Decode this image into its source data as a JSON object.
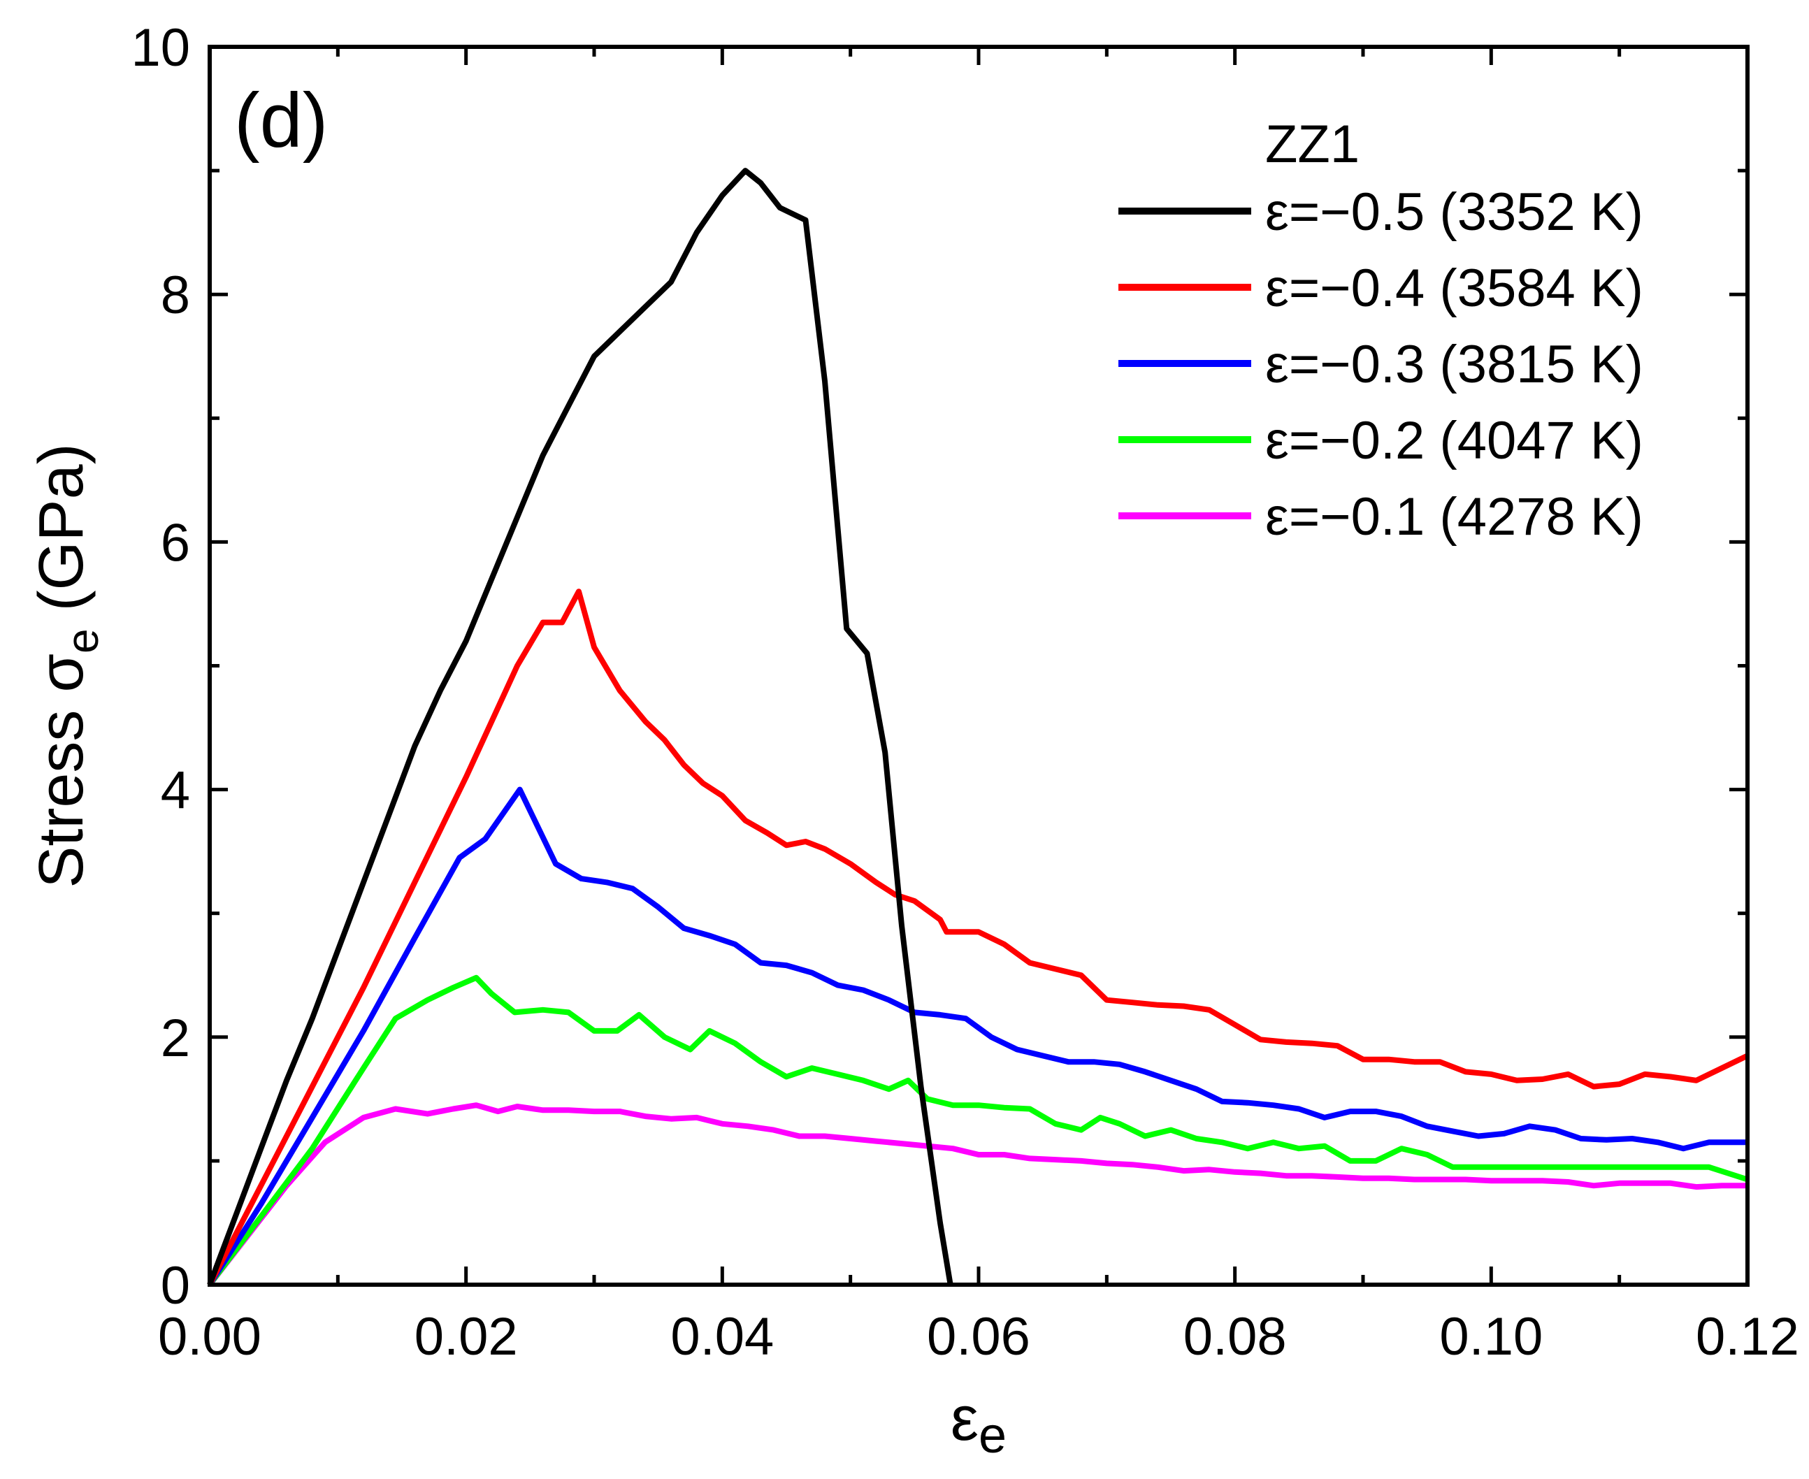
{
  "chart_data": {
    "type": "line",
    "panel_label": "(d)",
    "legend_title": "ZZ1",
    "xlabel_symbol": "ε",
    "xlabel_subscript": "e",
    "ylabel_prefix": "Stress σ",
    "ylabel_subscript": "e",
    "ylabel_suffix": " (GPa)",
    "xlim": [
      0,
      0.12
    ],
    "ylim": [
      0,
      10
    ],
    "xticks": [
      0.0,
      0.02,
      0.04,
      0.06,
      0.08,
      0.1,
      0.12
    ],
    "xtick_labels": [
      "0.00",
      "0.02",
      "0.04",
      "0.06",
      "0.08",
      "0.10",
      "0.12"
    ],
    "yticks": [
      0,
      2,
      4,
      6,
      8,
      10
    ],
    "ytick_labels": [
      "0",
      "2",
      "4",
      "6",
      "8",
      "10"
    ],
    "legend_position": "top-right",
    "grid": false,
    "series": [
      {
        "name": "ε=−0.5 (3352 K)",
        "color": "#000000",
        "x": [
          0,
          0.002,
          0.004,
          0.006,
          0.008,
          0.01,
          0.012,
          0.014,
          0.016,
          0.018,
          0.02,
          0.022,
          0.024,
          0.026,
          0.028,
          0.03,
          0.032,
          0.034,
          0.036,
          0.038,
          0.04,
          0.0418,
          0.043,
          0.0445,
          0.0465,
          0.048,
          0.0497,
          0.0513,
          0.0527,
          0.054,
          0.0555,
          0.057,
          0.0578
        ],
        "values": [
          0,
          0.55,
          1.1,
          1.65,
          2.15,
          2.7,
          3.25,
          3.8,
          4.35,
          4.8,
          5.2,
          5.7,
          6.2,
          6.7,
          7.1,
          7.5,
          7.7,
          7.9,
          8.1,
          8.5,
          8.8,
          9.0,
          8.9,
          8.7,
          8.6,
          7.3,
          5.3,
          5.1,
          4.3,
          2.9,
          1.6,
          0.5,
          0
        ]
      },
      {
        "name": "ε=−0.4 (3584 K)",
        "color": "#ff0000",
        "x": [
          0,
          0.004,
          0.008,
          0.012,
          0.016,
          0.02,
          0.024,
          0.026,
          0.0275,
          0.0288,
          0.03,
          0.032,
          0.034,
          0.0355,
          0.037,
          0.0385,
          0.04,
          0.0418,
          0.0435,
          0.045,
          0.0465,
          0.048,
          0.05,
          0.052,
          0.0535,
          0.055,
          0.057,
          0.0575,
          0.06,
          0.062,
          0.064,
          0.066,
          0.068,
          0.07,
          0.072,
          0.074,
          0.076,
          0.078,
          0.08,
          0.082,
          0.084,
          0.086,
          0.088,
          0.09,
          0.092,
          0.094,
          0.096,
          0.098,
          0.1,
          0.102,
          0.104,
          0.106,
          0.108,
          0.11,
          0.112,
          0.114,
          0.116,
          0.118,
          0.12
        ],
        "values": [
          0,
          0.8,
          1.6,
          2.4,
          3.25,
          4.1,
          5.0,
          5.35,
          5.35,
          5.6,
          5.15,
          4.8,
          4.55,
          4.4,
          4.2,
          4.05,
          3.95,
          3.75,
          3.65,
          3.55,
          3.58,
          3.52,
          3.4,
          3.25,
          3.15,
          3.1,
          2.95,
          2.85,
          2.85,
          2.75,
          2.6,
          2.55,
          2.5,
          2.3,
          2.28,
          2.26,
          2.25,
          2.22,
          2.1,
          1.98,
          1.96,
          1.95,
          1.93,
          1.82,
          1.82,
          1.8,
          1.8,
          1.72,
          1.7,
          1.65,
          1.66,
          1.7,
          1.6,
          1.62,
          1.7,
          1.68,
          1.65,
          1.75,
          1.85
        ]
      },
      {
        "name": "ε=−0.3 (3815 K)",
        "color": "#0000ff",
        "x": [
          0,
          0.004,
          0.008,
          0.012,
          0.016,
          0.0195,
          0.0215,
          0.0242,
          0.027,
          0.029,
          0.031,
          0.033,
          0.035,
          0.037,
          0.039,
          0.041,
          0.043,
          0.045,
          0.047,
          0.049,
          0.051,
          0.053,
          0.055,
          0.057,
          0.059,
          0.061,
          0.063,
          0.065,
          0.067,
          0.069,
          0.071,
          0.073,
          0.075,
          0.077,
          0.079,
          0.081,
          0.083,
          0.085,
          0.087,
          0.089,
          0.091,
          0.093,
          0.095,
          0.097,
          0.099,
          0.101,
          0.103,
          0.105,
          0.107,
          0.109,
          0.111,
          0.113,
          0.115,
          0.117,
          0.12
        ],
        "values": [
          0,
          0.65,
          1.35,
          2.05,
          2.8,
          3.45,
          3.6,
          4.0,
          3.4,
          3.28,
          3.25,
          3.2,
          3.05,
          2.88,
          2.82,
          2.75,
          2.6,
          2.58,
          2.52,
          2.42,
          2.38,
          2.3,
          2.2,
          2.18,
          2.15,
          2.0,
          1.9,
          1.85,
          1.8,
          1.8,
          1.78,
          1.72,
          1.65,
          1.58,
          1.48,
          1.47,
          1.45,
          1.42,
          1.35,
          1.4,
          1.4,
          1.36,
          1.28,
          1.24,
          1.2,
          1.22,
          1.28,
          1.25,
          1.18,
          1.17,
          1.18,
          1.15,
          1.1,
          1.15,
          1.15
        ]
      },
      {
        "name": "ε=−0.2 (4047 K)",
        "color": "#00ff00",
        "x": [
          0,
          0.004,
          0.008,
          0.012,
          0.0145,
          0.017,
          0.019,
          0.0208,
          0.022,
          0.0238,
          0.026,
          0.028,
          0.03,
          0.0318,
          0.0335,
          0.0355,
          0.0375,
          0.039,
          0.041,
          0.043,
          0.045,
          0.047,
          0.049,
          0.051,
          0.053,
          0.0545,
          0.056,
          0.058,
          0.06,
          0.062,
          0.064,
          0.066,
          0.068,
          0.0695,
          0.071,
          0.073,
          0.075,
          0.077,
          0.079,
          0.081,
          0.083,
          0.085,
          0.087,
          0.089,
          0.091,
          0.093,
          0.095,
          0.097,
          0.099,
          0.101,
          0.103,
          0.105,
          0.107,
          0.109,
          0.111,
          0.113,
          0.115,
          0.117,
          0.12
        ],
        "values": [
          0,
          0.55,
          1.1,
          1.75,
          2.15,
          2.3,
          2.4,
          2.48,
          2.35,
          2.2,
          2.22,
          2.2,
          2.05,
          2.05,
          2.18,
          2.0,
          1.9,
          2.05,
          1.95,
          1.8,
          1.68,
          1.75,
          1.7,
          1.65,
          1.58,
          1.65,
          1.5,
          1.45,
          1.45,
          1.43,
          1.42,
          1.3,
          1.25,
          1.35,
          1.3,
          1.2,
          1.25,
          1.18,
          1.15,
          1.1,
          1.15,
          1.1,
          1.12,
          1.0,
          1.0,
          1.1,
          1.05,
          0.95,
          0.95,
          0.95,
          0.95,
          0.95,
          0.95,
          0.95,
          0.95,
          0.95,
          0.95,
          0.95,
          0.85
        ]
      },
      {
        "name": "ε=−0.1 (4278 K)",
        "color": "#ff00ff",
        "x": [
          0,
          0.003,
          0.006,
          0.009,
          0.012,
          0.0145,
          0.017,
          0.019,
          0.0208,
          0.0225,
          0.024,
          0.026,
          0.028,
          0.03,
          0.032,
          0.034,
          0.036,
          0.038,
          0.04,
          0.042,
          0.044,
          0.046,
          0.048,
          0.05,
          0.052,
          0.054,
          0.056,
          0.058,
          0.06,
          0.062,
          0.064,
          0.066,
          0.068,
          0.07,
          0.072,
          0.074,
          0.076,
          0.078,
          0.08,
          0.082,
          0.084,
          0.086,
          0.088,
          0.09,
          0.092,
          0.094,
          0.096,
          0.098,
          0.1,
          0.102,
          0.104,
          0.106,
          0.108,
          0.11,
          0.112,
          0.114,
          0.116,
          0.118,
          0.12
        ],
        "values": [
          0,
          0.4,
          0.8,
          1.15,
          1.35,
          1.42,
          1.38,
          1.42,
          1.45,
          1.4,
          1.44,
          1.41,
          1.41,
          1.4,
          1.4,
          1.36,
          1.34,
          1.35,
          1.3,
          1.28,
          1.25,
          1.2,
          1.2,
          1.18,
          1.16,
          1.14,
          1.12,
          1.1,
          1.05,
          1.05,
          1.02,
          1.01,
          1.0,
          0.98,
          0.97,
          0.95,
          0.92,
          0.93,
          0.91,
          0.9,
          0.88,
          0.88,
          0.87,
          0.86,
          0.86,
          0.85,
          0.85,
          0.85,
          0.84,
          0.84,
          0.84,
          0.83,
          0.8,
          0.82,
          0.82,
          0.82,
          0.79,
          0.8,
          0.8
        ]
      }
    ]
  }
}
